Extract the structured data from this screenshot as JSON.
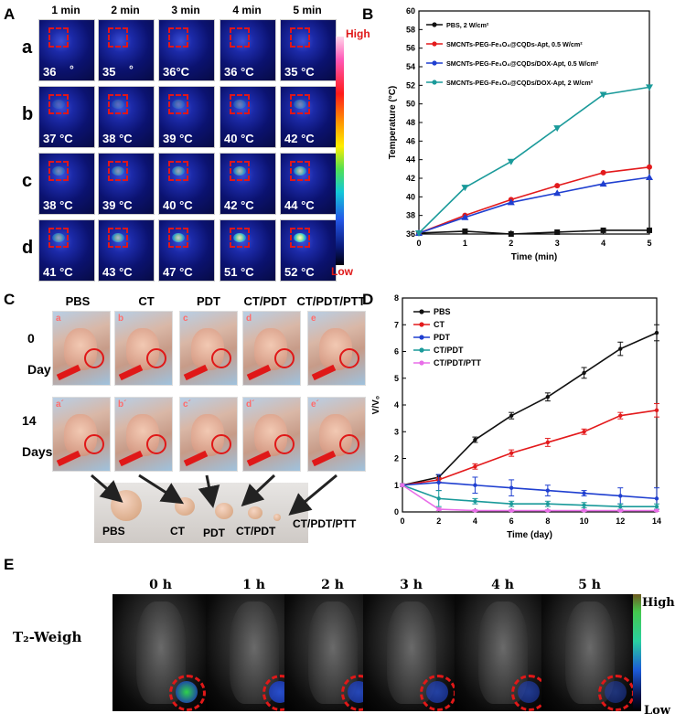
{
  "panels": {
    "a": "A",
    "b": "B",
    "c": "C",
    "d": "D",
    "e": "E"
  },
  "panelA": {
    "times": [
      "1 min",
      "2 min",
      "3 min",
      "4 min",
      "5 min"
    ],
    "rows": [
      {
        "label": "a",
        "temps": [
          "36",
          "35",
          "36°C",
          "36 °C",
          "35 °C"
        ],
        "extra": [
          "°",
          "°"
        ]
      },
      {
        "label": "b",
        "temps": [
          "37 °C",
          "38 °C",
          "39 °C",
          "40 °C",
          "42 °C"
        ]
      },
      {
        "label": "c",
        "temps": [
          "38 °C",
          "39 °C",
          "40 °C",
          "42 °C",
          "44 °C"
        ]
      },
      {
        "label": "d",
        "temps": [
          "41 °C",
          "43 °C",
          "47 °C",
          "51 °C",
          "52 °C"
        ]
      }
    ],
    "high": "High",
    "low": "Low"
  },
  "panelC": {
    "groups": [
      "PBS",
      "CT",
      "PDT",
      "CT/PDT",
      "CT/PDT/PTT"
    ],
    "day0_num": "0",
    "day0_unit": "Day",
    "day14_num": "14",
    "day14_unit": "Days",
    "tags0": [
      "a",
      "b",
      "c",
      "d",
      "e"
    ],
    "tags14": [
      "a´",
      "b´",
      "c´",
      "d´",
      "e´"
    ],
    "tumor_labels": [
      "PBS",
      "CT",
      "PDT",
      "CT/PDT",
      "CT/PDT/PTT"
    ]
  },
  "panelE": {
    "times": [
      "0 h",
      "1 h",
      "2 h",
      "3 h",
      "4 h",
      "5 h"
    ],
    "row_label": "T₂-Weigh",
    "high": "High",
    "low": "Low",
    "colors": {
      "tumor_0h": "#2fd24a",
      "tumor_later": "#2a55e0",
      "ring": "#e01818"
    }
  },
  "chart_data": [
    {
      "id": "B",
      "type": "line",
      "xlabel": "Time (min)",
      "ylabel": "Temperature (°C)",
      "xlim": [
        0,
        5
      ],
      "ylim": [
        36,
        60
      ],
      "x": [
        0,
        1,
        2,
        3,
        4,
        5
      ],
      "xticks": [
        "0",
        "1",
        "2",
        "3",
        "4",
        "5"
      ],
      "yticks": [
        "36",
        "38",
        "40",
        "42",
        "44",
        "46",
        "48",
        "50",
        "52",
        "54",
        "56",
        "58",
        "60"
      ],
      "series": [
        {
          "name": "PBS, 2 W/cm²",
          "color": "#111111",
          "marker": "square",
          "values": [
            36.1,
            36.3,
            36.0,
            36.2,
            36.4,
            36.4
          ]
        },
        {
          "name": "SMCNTs-PEG-Fe₃O₄@CQDs-Apt, 0.5 W/cm²",
          "color": "#e31a1c",
          "marker": "circle",
          "values": [
            36.1,
            38.0,
            39.7,
            41.2,
            42.6,
            43.2
          ]
        },
        {
          "name": "SMCNTs-PEG-Fe₃O₄@CQDs/DOX-Apt, 0.5 W/cm²",
          "color": "#1f3fd0",
          "marker": "triangle",
          "values": [
            36.1,
            37.8,
            39.4,
            40.4,
            41.4,
            42.1
          ]
        },
        {
          "name": "SMCNTs-PEG-Fe₃O₄@CQDs/DOX-Apt, 2 W/cm²",
          "color": "#1a9a9a",
          "marker": "triangle-down",
          "values": [
            36.1,
            41.0,
            43.8,
            47.4,
            51.0,
            51.8
          ]
        }
      ]
    },
    {
      "id": "D",
      "type": "line",
      "xlabel": "Time (day)",
      "ylabel": "V/V₀",
      "xlim": [
        0,
        14
      ],
      "ylim": [
        0,
        8
      ],
      "x": [
        0,
        2,
        4,
        6,
        8,
        10,
        12,
        14
      ],
      "xticks": [
        "0",
        "2",
        "4",
        "6",
        "8",
        "10",
        "12",
        "14"
      ],
      "yticks": [
        "0",
        "1",
        "2",
        "3",
        "4",
        "5",
        "6",
        "7",
        "8"
      ],
      "series": [
        {
          "name": "PBS",
          "color": "#111111",
          "values": [
            1.0,
            1.3,
            2.7,
            3.6,
            4.3,
            5.2,
            6.1,
            6.7
          ],
          "errors": [
            0.05,
            0.08,
            0.1,
            0.12,
            0.15,
            0.2,
            0.25,
            0.3
          ]
        },
        {
          "name": "CT",
          "color": "#e31a1c",
          "values": [
            1.0,
            1.2,
            1.7,
            2.2,
            2.6,
            3.0,
            3.6,
            3.8
          ],
          "errors": [
            0.05,
            0.08,
            0.1,
            0.12,
            0.15,
            0.1,
            0.12,
            0.25
          ]
        },
        {
          "name": "PDT",
          "color": "#1f3fd0",
          "values": [
            1.0,
            1.1,
            1.0,
            0.9,
            0.8,
            0.7,
            0.6,
            0.5
          ],
          "errors": [
            0.05,
            0.3,
            0.3,
            0.3,
            0.2,
            0.1,
            0.3,
            0.4
          ]
        },
        {
          "name": "CT/PDT",
          "color": "#1a9a9a",
          "values": [
            1.0,
            0.5,
            0.4,
            0.3,
            0.3,
            0.25,
            0.2,
            0.2
          ],
          "errors": [
            0.05,
            0.3,
            0.1,
            0.1,
            0.1,
            0.1,
            0.1,
            0.1
          ]
        },
        {
          "name": "CT/PDT/PTT",
          "color": "#e86ee8",
          "values": [
            1.0,
            0.1,
            0.05,
            0.05,
            0.05,
            0.05,
            0.05,
            0.05
          ],
          "errors": [
            0.05,
            0.05,
            0.03,
            0.03,
            0.03,
            0.03,
            0.03,
            0.03
          ]
        }
      ]
    }
  ]
}
